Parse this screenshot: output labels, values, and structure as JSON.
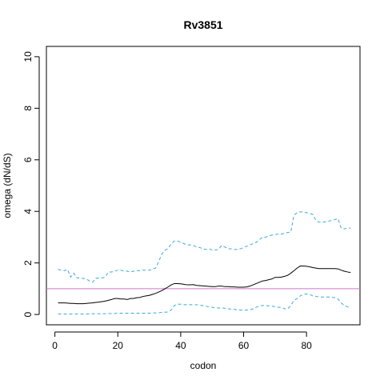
{
  "chart_data": {
    "type": "line",
    "title": "Rv3851",
    "xlabel": "codon",
    "ylabel": "omega (dN/dS)",
    "xlim": [
      -2.7,
      97
    ],
    "ylim": [
      -0.4,
      10.4
    ],
    "xticks": [
      0,
      20,
      40,
      60,
      80
    ],
    "xtick_labels": [
      "0",
      "20",
      "40",
      "60",
      "80"
    ],
    "yticks": [
      0,
      2,
      4,
      6,
      8,
      10
    ],
    "ytick_labels": [
      "0",
      "2",
      "4",
      "6",
      "8",
      "10"
    ],
    "grid": false,
    "reference_line": {
      "y": 1,
      "color": "#cc77cc"
    },
    "x": [
      1,
      2,
      3,
      4,
      5,
      6,
      7,
      8,
      9,
      10,
      11,
      12,
      13,
      14,
      15,
      16,
      17,
      18,
      19,
      20,
      21,
      22,
      23,
      24,
      25,
      26,
      27,
      28,
      29,
      30,
      31,
      32,
      33,
      34,
      35,
      36,
      37,
      38,
      39,
      40,
      41,
      42,
      43,
      44,
      45,
      46,
      47,
      48,
      49,
      50,
      51,
      52,
      53,
      54,
      55,
      56,
      57,
      58,
      59,
      60,
      61,
      62,
      63,
      64,
      65,
      66,
      67,
      68,
      69,
      70,
      71,
      72,
      73,
      74,
      75,
      76,
      77,
      78,
      79,
      80,
      81,
      82,
      83,
      84,
      85,
      86,
      87,
      88,
      89,
      90,
      91,
      92,
      93,
      94
    ],
    "series": [
      {
        "name": "",
        "role": "estimate",
        "color": "#000000",
        "dashed": false,
        "values": [
          0.45,
          0.45,
          0.45,
          0.44,
          0.43,
          0.43,
          0.42,
          0.42,
          0.42,
          0.43,
          0.44,
          0.45,
          0.47,
          0.48,
          0.5,
          0.52,
          0.55,
          0.58,
          0.62,
          0.62,
          0.6,
          0.6,
          0.58,
          0.62,
          0.62,
          0.65,
          0.66,
          0.7,
          0.72,
          0.74,
          0.78,
          0.82,
          0.87,
          0.93,
          1.0,
          1.07,
          1.15,
          1.2,
          1.2,
          1.19,
          1.17,
          1.15,
          1.15,
          1.16,
          1.13,
          1.12,
          1.11,
          1.1,
          1.09,
          1.08,
          1.08,
          1.1,
          1.1,
          1.08,
          1.08,
          1.07,
          1.07,
          1.06,
          1.06,
          1.06,
          1.07,
          1.1,
          1.15,
          1.2,
          1.25,
          1.3,
          1.32,
          1.35,
          1.38,
          1.44,
          1.44,
          1.45,
          1.48,
          1.52,
          1.6,
          1.7,
          1.8,
          1.88,
          1.88,
          1.87,
          1.85,
          1.82,
          1.8,
          1.78,
          1.78,
          1.78,
          1.78,
          1.78,
          1.78,
          1.77,
          1.72,
          1.68,
          1.65,
          1.63
        ]
      },
      {
        "name": "",
        "role": "upper-bound",
        "color": "#3aa8e0",
        "dashed": true,
        "values": [
          1.75,
          1.72,
          1.7,
          1.75,
          1.45,
          1.6,
          1.42,
          1.42,
          1.4,
          1.38,
          1.3,
          1.25,
          1.4,
          1.42,
          1.42,
          1.45,
          1.65,
          1.65,
          1.68,
          1.72,
          1.72,
          1.68,
          1.68,
          1.65,
          1.68,
          1.7,
          1.7,
          1.72,
          1.72,
          1.72,
          1.75,
          1.8,
          2.05,
          2.35,
          2.5,
          2.55,
          2.75,
          2.85,
          2.85,
          2.8,
          2.75,
          2.7,
          2.7,
          2.68,
          2.62,
          2.6,
          2.55,
          2.52,
          2.55,
          2.5,
          2.5,
          2.52,
          2.68,
          2.62,
          2.55,
          2.55,
          2.52,
          2.52,
          2.55,
          2.6,
          2.65,
          2.7,
          2.75,
          2.8,
          2.9,
          3.0,
          3.0,
          3.05,
          3.08,
          3.1,
          3.12,
          3.12,
          3.15,
          3.18,
          3.2,
          3.85,
          3.95,
          3.98,
          3.98,
          3.95,
          3.92,
          3.88,
          3.65,
          3.58,
          3.58,
          3.6,
          3.62,
          3.65,
          3.68,
          3.72,
          3.35,
          3.32,
          3.35,
          3.35
        ]
      },
      {
        "name": "",
        "role": "lower-bound",
        "color": "#3aa8e0",
        "dashed": true,
        "values": [
          0.02,
          0.02,
          0.02,
          0.02,
          0.02,
          0.02,
          0.02,
          0.02,
          0.02,
          0.02,
          0.02,
          0.03,
          0.03,
          0.03,
          0.03,
          0.03,
          0.04,
          0.04,
          0.04,
          0.05,
          0.05,
          0.05,
          0.05,
          0.05,
          0.05,
          0.05,
          0.05,
          0.05,
          0.05,
          0.05,
          0.06,
          0.06,
          0.07,
          0.08,
          0.09,
          0.1,
          0.18,
          0.35,
          0.4,
          0.4,
          0.38,
          0.38,
          0.38,
          0.38,
          0.38,
          0.36,
          0.35,
          0.32,
          0.3,
          0.28,
          0.26,
          0.25,
          0.26,
          0.24,
          0.22,
          0.21,
          0.2,
          0.18,
          0.17,
          0.17,
          0.17,
          0.18,
          0.22,
          0.28,
          0.33,
          0.35,
          0.35,
          0.33,
          0.32,
          0.3,
          0.28,
          0.28,
          0.22,
          0.22,
          0.35,
          0.55,
          0.62,
          0.72,
          0.78,
          0.8,
          0.78,
          0.72,
          0.7,
          0.68,
          0.68,
          0.68,
          0.68,
          0.67,
          0.65,
          0.6,
          0.45,
          0.35,
          0.3,
          0.25
        ]
      }
    ]
  }
}
